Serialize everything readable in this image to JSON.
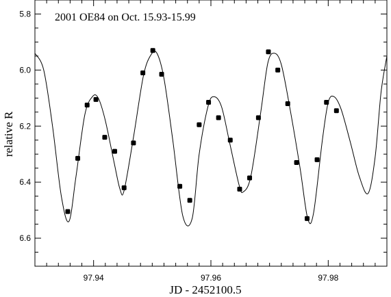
{
  "chart_data": {
    "type": "scatter",
    "title": "2001  OE84 on Oct. 15.93-15.99",
    "xlabel": "JD - 2452100.5",
    "ylabel": "relative R",
    "xlim": [
      97.93,
      97.99
    ],
    "ylim": [
      6.7,
      5.75
    ],
    "y_inverted": true,
    "x_ticks": [
      "97.94",
      "97.96",
      "97.98"
    ],
    "y_ticks": [
      "5.8",
      "6.0",
      "6.2",
      "6.4",
      "6.6"
    ],
    "series": [
      {
        "kind": "points",
        "x": [
          97.9356,
          97.9373,
          97.9389,
          97.9404,
          97.9419,
          97.9436,
          97.9452,
          97.9468,
          97.9484,
          97.9501,
          97.9516,
          97.9547,
          97.9564,
          97.958,
          97.9596,
          97.9613,
          97.9633,
          97.9649,
          97.9666,
          97.9681,
          97.9698,
          97.9714,
          97.9731,
          97.9746,
          97.9764,
          97.9781,
          97.9797,
          97.9814
        ],
        "y": [
          6.505,
          6.315,
          6.125,
          6.105,
          6.24,
          6.29,
          6.42,
          6.26,
          6.01,
          5.93,
          6.015,
          6.415,
          6.465,
          6.195,
          6.115,
          6.17,
          6.25,
          6.425,
          6.385,
          6.17,
          5.935,
          6.0,
          6.12,
          6.33,
          6.53,
          6.32,
          6.115,
          6.145
        ]
      },
      {
        "kind": "line",
        "x": [
          97.93,
          97.9315,
          97.933,
          97.9345,
          97.9358,
          97.937,
          97.9385,
          97.9398,
          97.9408,
          97.942,
          97.9435,
          97.9445,
          97.9452,
          97.9468,
          97.9485,
          97.9498,
          97.9508,
          97.952,
          97.9535,
          97.9552,
          97.9568,
          97.958,
          97.9595,
          97.9605,
          97.9618,
          97.9632,
          97.9648,
          97.9655,
          97.9668,
          97.9685,
          97.9697,
          97.9708,
          97.972,
          97.9735,
          97.9752,
          97.9765,
          97.9775,
          97.979,
          97.98,
          97.981,
          97.9822,
          97.9838,
          97.9853,
          97.9868,
          97.988,
          97.989,
          97.99
        ],
        "y": [
          5.94,
          6.0,
          6.2,
          6.45,
          6.54,
          6.38,
          6.16,
          6.095,
          6.1,
          6.18,
          6.33,
          6.425,
          6.43,
          6.24,
          6.02,
          5.945,
          5.94,
          6.03,
          6.25,
          6.52,
          6.53,
          6.3,
          6.13,
          6.095,
          6.13,
          6.26,
          6.41,
          6.435,
          6.38,
          6.15,
          5.975,
          5.94,
          5.98,
          6.14,
          6.35,
          6.53,
          6.51,
          6.25,
          6.115,
          6.095,
          6.14,
          6.26,
          6.38,
          6.44,
          6.31,
          6.08,
          5.95
        ]
      }
    ]
  }
}
